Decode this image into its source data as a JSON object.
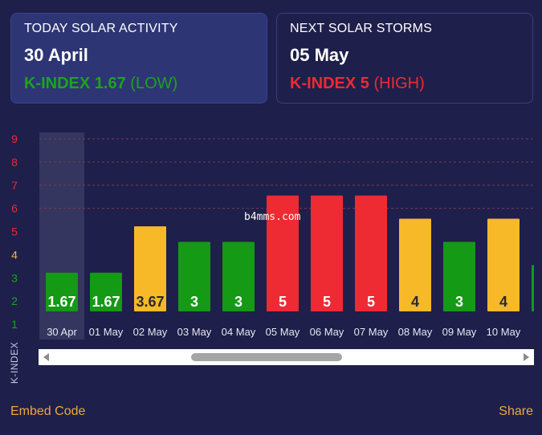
{
  "today": {
    "title": "TODAY SOLAR ACTIVITY",
    "date": "30 April",
    "kp_label": "K-INDEX 1.67",
    "kp_level": "(LOW)"
  },
  "next": {
    "title": "NEXT SOLAR STORMS",
    "date": "05 May",
    "kp_label": "K-INDEX 5",
    "kp_level": "(HIGH)"
  },
  "watermark": "b4mms.com",
  "footer": {
    "embed_label": "Embed Code",
    "share_label": "Share"
  },
  "colors": {
    "background": "#1e1f4b",
    "green": "#149a14",
    "yellow": "#f7b928",
    "red": "#ee2a33",
    "accent": "#f0a83a"
  },
  "chart_data": {
    "type": "bar",
    "ylabel": "K-INDEX",
    "ylim": [
      0,
      9
    ],
    "yticks": [
      1,
      2,
      3,
      4,
      5,
      6,
      7,
      8,
      9
    ],
    "ytick_colors": [
      "#1aa51a",
      "#1aa51a",
      "#1aa51a",
      "#f7b928",
      "#ee2a33",
      "#ee2a33",
      "#ee2a33",
      "#ee2a33",
      "#ee2a33"
    ],
    "categories": [
      "30 Apr",
      "01 May",
      "02 May",
      "03 May",
      "04 May",
      "05 May",
      "06 May",
      "07 May",
      "08 May",
      "09 May",
      "10 May"
    ],
    "values": [
      1.67,
      1.67,
      3.67,
      3,
      3,
      5,
      5,
      5,
      4,
      3,
      4
    ],
    "value_labels": [
      "1.67",
      "1.67",
      "3.67",
      "3",
      "3",
      "5",
      "5",
      "5",
      "4",
      "3",
      "4"
    ],
    "bar_colors": [
      "#149a14",
      "#149a14",
      "#f7b928",
      "#149a14",
      "#149a14",
      "#ee2a33",
      "#ee2a33",
      "#ee2a33",
      "#f7b928",
      "#149a14",
      "#f7b928"
    ],
    "highlighted": "30 Apr",
    "grid": true,
    "gridlines": [
      6,
      7,
      8,
      9
    ]
  }
}
